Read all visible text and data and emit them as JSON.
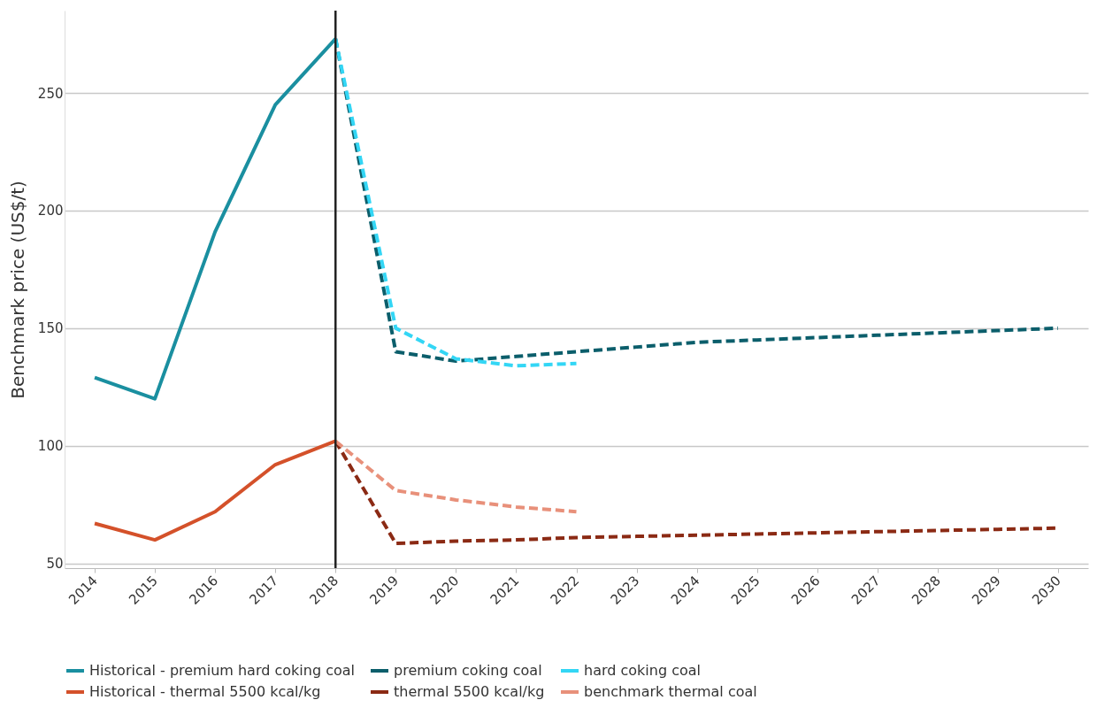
{
  "chart_data": {
    "type": "line",
    "ylabel": "Benchmark price (US$/t)",
    "categories": [
      "2014",
      "2015",
      "2016",
      "2017",
      "2018",
      "2019",
      "2020",
      "2021",
      "2022",
      "2023",
      "2024",
      "2025",
      "2026",
      "2027",
      "2028",
      "2029",
      "2030"
    ],
    "ylim": [
      48,
      285
    ],
    "yticks": [
      50,
      100,
      150,
      200,
      250
    ],
    "grid": "y",
    "legend": "bottom",
    "ref_lines": [
      {
        "axis": "x",
        "value": "2018",
        "color": "#222222"
      }
    ],
    "series": [
      {
        "name": "Historical - premium hard coking coal",
        "color": "#1a8fa0",
        "line_style": "solid",
        "values": [
          129,
          120,
          191,
          245,
          273,
          null,
          null,
          null,
          null,
          null,
          null,
          null,
          null,
          null,
          null,
          null,
          null
        ]
      },
      {
        "name": "premium coking coal",
        "color": "#0b5e6b",
        "line_style": "dashed",
        "values": [
          null,
          null,
          null,
          null,
          273,
          140,
          136,
          138,
          140,
          142,
          144,
          145,
          146,
          147,
          148,
          149,
          150
        ]
      },
      {
        "name": "hard coking coal",
        "color": "#33d6f5",
        "line_style": "dashed",
        "values": [
          null,
          null,
          null,
          null,
          273,
          150,
          137,
          134,
          135,
          null,
          null,
          null,
          null,
          null,
          null,
          null,
          null
        ]
      },
      {
        "name": "Historical - thermal 5500 kcal/kg",
        "color": "#d4512a",
        "line_style": "solid",
        "values": [
          67,
          60,
          72,
          92,
          102,
          null,
          null,
          null,
          null,
          null,
          null,
          null,
          null,
          null,
          null,
          null,
          null
        ]
      },
      {
        "name": "thermal 5500 kcal/kg",
        "color": "#8b2a14",
        "line_style": "dashed",
        "values": [
          null,
          null,
          null,
          null,
          102,
          58.5,
          59.5,
          60,
          61,
          61.5,
          62,
          62.5,
          63,
          63.5,
          64,
          64.5,
          65
        ]
      },
      {
        "name": "benchmark thermal coal",
        "color": "#e8907a",
        "line_style": "dashed",
        "values": [
          null,
          null,
          null,
          null,
          102,
          81,
          77,
          74,
          72,
          null,
          null,
          null,
          null,
          null,
          null,
          null,
          null
        ]
      }
    ]
  }
}
